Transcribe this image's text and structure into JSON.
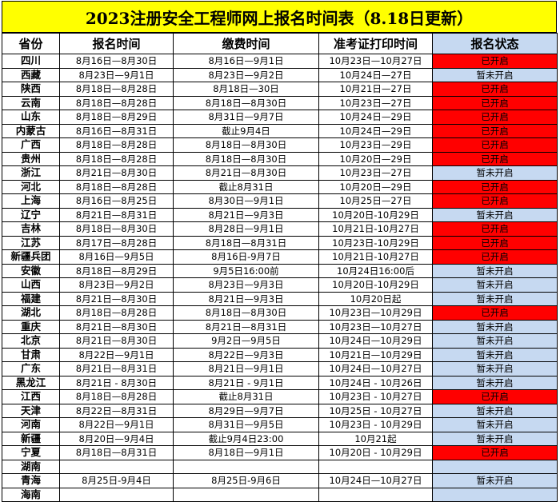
{
  "title": "2023注册安全工程师网上报名时间表（8.18日更新）",
  "headers": [
    "省份",
    "报名时间",
    "缴费时间",
    "准考证打印时间",
    "报名状态"
  ],
  "colors": {
    "title_bg": "#ffff00",
    "open": "#ff0000",
    "closed": "#c6d9f1"
  },
  "rows": [
    [
      "四川",
      "8月16日—8月30日",
      "8月16日—9月1日",
      "10月23日—10月27日",
      "已开启"
    ],
    [
      "西藏",
      "8月23日—9月1日",
      "8月23日—9月2日",
      "10月24日—27日",
      "暂未开启"
    ],
    [
      "陕西",
      "8月18日—8月28日",
      "8月18日—30日",
      "10月21日—27日",
      "已开启"
    ],
    [
      "云南",
      "8月18日—8月28日",
      "8月18日—8月30日",
      "10月23日—27日",
      "已开启"
    ],
    [
      "山东",
      "8月18日—8月29日",
      "8月31日—9月7日",
      "10月24日—29日",
      "已开启"
    ],
    [
      "内蒙古",
      "8月16日—8月31日",
      "截止9月4日",
      "10月24日—29日",
      "已开启"
    ],
    [
      "广西",
      "8月18日—8月28日",
      "8月18日—8月30日",
      "10月23日—29日",
      "已开启"
    ],
    [
      "贵州",
      "8月18日—8月28日",
      "8月18日—8月30日",
      "10月20日—29日",
      "已开启"
    ],
    [
      "浙江",
      "8月21日—8月30日",
      "8月21日—8月30日",
      "10月23日—27日",
      "暂未开启"
    ],
    [
      "河北",
      "8月18日—8月28日",
      "截止8月31日",
      "10月20日—29日",
      "已开启"
    ],
    [
      "上海",
      "8月16日—8月25日",
      "8月30日—9月1日",
      "10月25日—27日",
      "已开启"
    ],
    [
      "辽宁",
      "8月21日—8月31日",
      "8月21日—9月3日",
      "10月20日-10月29日",
      "暂未开启"
    ],
    [
      "吉林",
      "8月18日—8月30日",
      "8月28日—9月1日",
      "10月21日-10月27日",
      "已开启"
    ],
    [
      "江苏",
      "8月17日—8月28日",
      "8月18日—8月31日",
      "10月23日-10月29日",
      "已开启"
    ],
    [
      "新疆兵团",
      "8月16日—9月5日",
      "8月16日-9月7日",
      "10月21日-10月27日",
      "已开启"
    ],
    [
      "安徽",
      "8月18日—8月29日",
      "9月5日16:00前",
      "10月24日16:00后",
      "暂未开启"
    ],
    [
      "山西",
      "8月23日—9月2日",
      "8月23日—9月3日",
      "10月20日-10月29日",
      "暂未开启"
    ],
    [
      "福建",
      "8月21日—8月30日",
      "8月21日—9月3日",
      "10月20日起",
      "暂未开启"
    ],
    [
      "湖北",
      "8月18日—8月28日",
      "8月18日—8月30日",
      "10月23日—10月29日",
      "已开启"
    ],
    [
      "重庆",
      "8月21日—8月30日",
      "8月21日—8月31日",
      "10月23日—10月27日",
      "暂未开启"
    ],
    [
      "北京",
      "8月21日—8月30日",
      "9月2日—9月5日",
      "10月24日—10月29日",
      "暂未开启"
    ],
    [
      "甘肃",
      "8月22日—9月1日",
      "8月22日—9月3日",
      "10月21日—10月29日",
      "暂未开启"
    ],
    [
      "广东",
      "8月21日—8月31日",
      "8月21日—9月1日",
      "10月24日—10月27日",
      "暂未开启"
    ],
    [
      "黑龙江",
      "8月21日 - 8月30日",
      "8月21日 - 9月1日",
      "10月24日 - 10月26日",
      "暂未开启"
    ],
    [
      "江西",
      "8月18日—8月28日",
      "截止8月31日",
      "10月23日 - 10月27日",
      "已开启"
    ],
    [
      "天津",
      "8月22日—8月31日",
      "8月29日—9月7日",
      "10月25日 - 10月27日",
      "暂未开启"
    ],
    [
      "河南",
      "8月22日—9月1日",
      "8月31日—9月5日",
      "10月23日 - 10月29日",
      "暂未开启"
    ],
    [
      "新疆",
      "8月20日—9月4日",
      "截止9月4日23:00",
      "10月21起",
      "暂未开启"
    ],
    [
      "宁夏",
      "8月18日—8月31日",
      "8月18日—9月1日",
      "10月20日 - 10月29日",
      "已开启"
    ],
    [
      "湖南",
      "",
      "",
      "",
      ""
    ],
    [
      "青海",
      "8月25日-9月4日",
      "8月25日-9月6日",
      "10月24日—10月27日",
      "暂未开启"
    ],
    [
      "海南",
      "",
      "",
      "",
      ""
    ]
  ]
}
